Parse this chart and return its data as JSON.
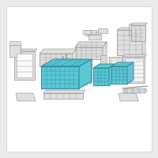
{
  "bg_color": "#ffffff",
  "highlight_color": "#5bc8d8",
  "highlight_edge": "#2a8899",
  "part_color": "#e0e0e0",
  "part_edge": "#999999",
  "fig_bg": "#ebebeb",
  "border_color": "#cccccc"
}
